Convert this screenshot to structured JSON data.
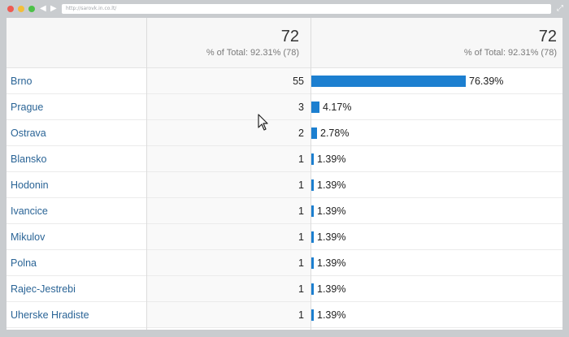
{
  "browser": {
    "url": "http://sarovk.in.co.lt/"
  },
  "table": {
    "header": {
      "col1_value": "72",
      "col1_sub": "% of Total: 92.31% (78)",
      "col2_value": "72",
      "col2_sub": "% of Total: 92.31% (78)"
    },
    "bar_max_percent": 76.39,
    "bar_color": "#1c7fd0",
    "rows": [
      {
        "name": "Brno",
        "value": "55",
        "percent": "76.39%",
        "share": 76.39
      },
      {
        "name": "Prague",
        "value": "3",
        "percent": "4.17%",
        "share": 4.17
      },
      {
        "name": "Ostrava",
        "value": "2",
        "percent": "2.78%",
        "share": 2.78
      },
      {
        "name": "Blansko",
        "value": "1",
        "percent": "1.39%",
        "share": 1.39
      },
      {
        "name": "Hodonin",
        "value": "1",
        "percent": "1.39%",
        "share": 1.39
      },
      {
        "name": "Ivancice",
        "value": "1",
        "percent": "1.39%",
        "share": 1.39
      },
      {
        "name": "Mikulov",
        "value": "1",
        "percent": "1.39%",
        "share": 1.39
      },
      {
        "name": "Polna",
        "value": "1",
        "percent": "1.39%",
        "share": 1.39
      },
      {
        "name": "Rajec-Jestrebi",
        "value": "1",
        "percent": "1.39%",
        "share": 1.39
      },
      {
        "name": "Uherske Hradiste",
        "value": "1",
        "percent": "1.39%",
        "share": 1.39
      }
    ]
  }
}
